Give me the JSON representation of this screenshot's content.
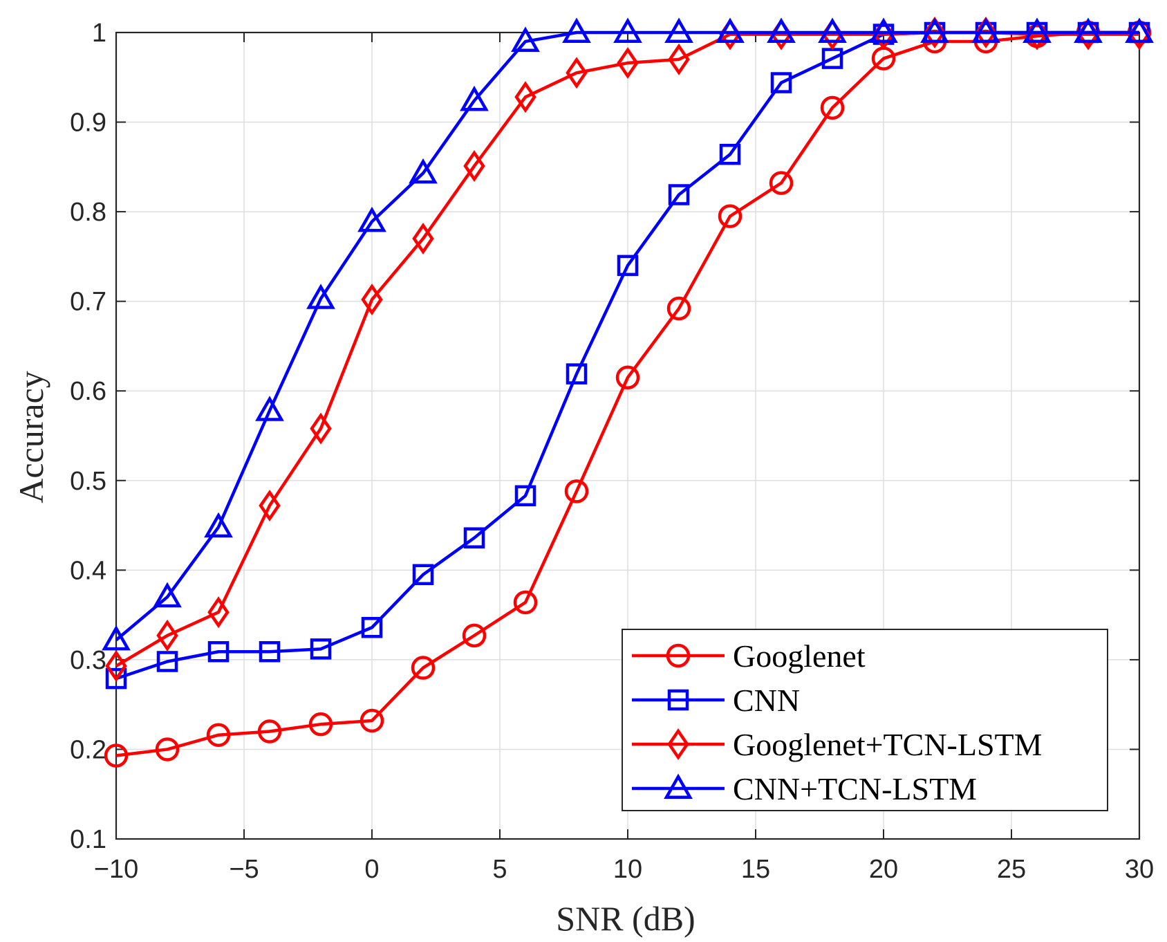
{
  "chart_data": {
    "type": "line",
    "title": "",
    "xlabel": "SNR (dB)",
    "ylabel": "Accuracy",
    "xlim": [
      -10,
      30
    ],
    "ylim": [
      0.1,
      1.0
    ],
    "grid": true,
    "legend_position": "bottom-right",
    "x": [
      -10,
      -8,
      -6,
      -4,
      -2,
      0,
      2,
      4,
      6,
      8,
      10,
      12,
      14,
      16,
      18,
      20,
      22,
      24,
      26,
      28,
      30
    ],
    "x_ticks": [
      {
        "value": -10,
        "label": "−10"
      },
      {
        "value": -5,
        "label": "−5"
      },
      {
        "value": 0,
        "label": "0"
      },
      {
        "value": 5,
        "label": "5"
      },
      {
        "value": 10,
        "label": "10"
      },
      {
        "value": 15,
        "label": "15"
      },
      {
        "value": 20,
        "label": "20"
      },
      {
        "value": 25,
        "label": "25"
      },
      {
        "value": 30,
        "label": "30"
      }
    ],
    "y_ticks": [
      {
        "value": 0.1,
        "label": "0.1"
      },
      {
        "value": 0.2,
        "label": "0.2"
      },
      {
        "value": 0.3,
        "label": "0.3"
      },
      {
        "value": 0.4,
        "label": "0.4"
      },
      {
        "value": 0.5,
        "label": "0.5"
      },
      {
        "value": 0.6,
        "label": "0.6"
      },
      {
        "value": 0.7,
        "label": "0.7"
      },
      {
        "value": 0.8,
        "label": "0.8"
      },
      {
        "value": 0.9,
        "label": "0.9"
      },
      {
        "value": 1.0,
        "label": "1"
      }
    ],
    "series": [
      {
        "name": "Googlenet",
        "color": "#ff0000",
        "marker": "circle",
        "values": [
          0.193,
          0.2,
          0.216,
          0.22,
          0.228,
          0.232,
          0.291,
          0.327,
          0.364,
          0.488,
          0.615,
          0.692,
          0.795,
          0.832,
          0.916,
          0.971,
          0.99,
          0.99,
          0.996,
          1.0,
          1.0
        ]
      },
      {
        "name": "CNN",
        "color": "#0000ff",
        "marker": "square",
        "values": [
          0.279,
          0.298,
          0.309,
          0.309,
          0.312,
          0.336,
          0.395,
          0.436,
          0.483,
          0.619,
          0.74,
          0.819,
          0.864,
          0.944,
          0.971,
          0.998,
          1.0,
          1.0,
          1.0,
          1.0,
          1.0
        ]
      },
      {
        "name": "Googlenet+TCN-LSTM",
        "color": "#ff0000",
        "marker": "diamond",
        "values": [
          0.293,
          0.327,
          0.353,
          0.472,
          0.558,
          0.702,
          0.77,
          0.851,
          0.928,
          0.955,
          0.966,
          0.97,
          0.998,
          0.998,
          0.998,
          0.998,
          1.0,
          1.0,
          0.998,
          0.998,
          0.998
        ]
      },
      {
        "name": "CNN+TCN-LSTM",
        "color": "#0000ff",
        "marker": "triangle",
        "values": [
          0.322,
          0.37,
          0.448,
          0.578,
          0.703,
          0.789,
          0.843,
          0.924,
          0.99,
          1.0,
          1.0,
          1.0,
          1.0,
          1.0,
          1.0,
          1.0,
          1.0,
          1.0,
          1.0,
          1.0,
          1.0
        ]
      }
    ]
  }
}
